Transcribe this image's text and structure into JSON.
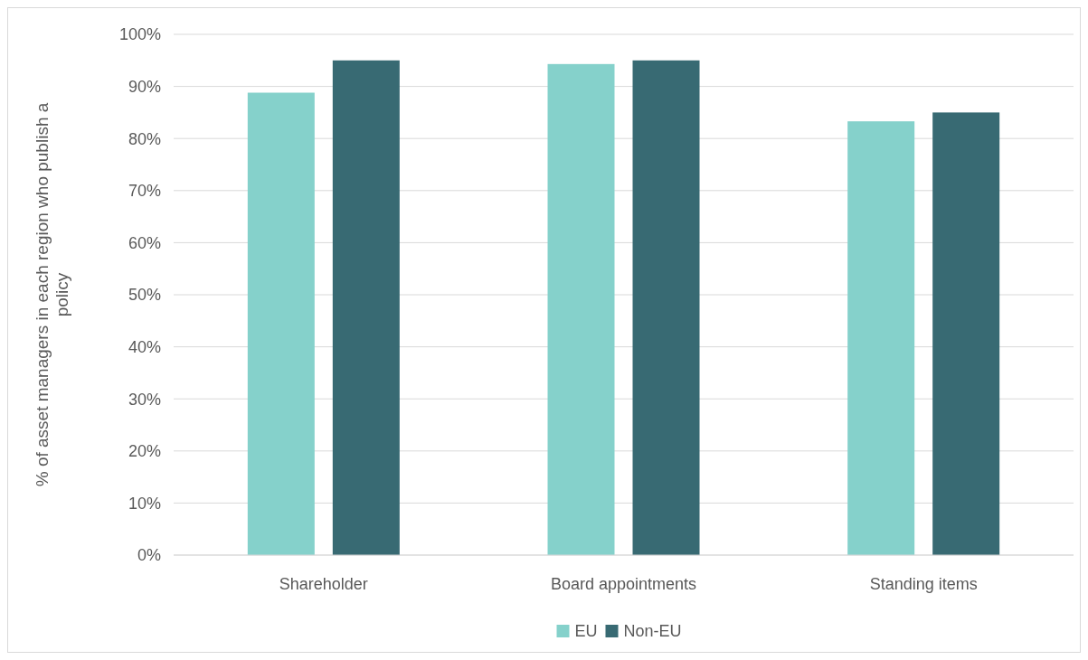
{
  "chart_data": {
    "type": "bar",
    "ylabel": "% of asset managers in each region who publish a policy",
    "categories": [
      "Shareholder",
      "Board appointments",
      "Standing items"
    ],
    "series": [
      {
        "name": "EU",
        "color": "#85d1cb",
        "values": [
          88.8,
          94.3,
          83.3
        ]
      },
      {
        "name": "Non-EU",
        "color": "#386a73",
        "values": [
          95,
          95,
          85
        ]
      }
    ],
    "ylim": [
      0,
      100
    ],
    "yticks": [
      {
        "value": 0,
        "label": "0%"
      },
      {
        "value": 10,
        "label": "10%"
      },
      {
        "value": 20,
        "label": "20%"
      },
      {
        "value": 30,
        "label": "30%"
      },
      {
        "value": 40,
        "label": "40%"
      },
      {
        "value": 50,
        "label": "50%"
      },
      {
        "value": 60,
        "label": "60%"
      },
      {
        "value": 70,
        "label": "70%"
      },
      {
        "value": 80,
        "label": "80%"
      },
      {
        "value": 90,
        "label": "90%"
      },
      {
        "value": 100,
        "label": "100%"
      }
    ],
    "grid": "y",
    "legend": "bottom"
  }
}
